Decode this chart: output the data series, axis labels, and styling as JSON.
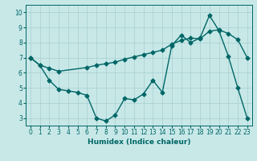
{
  "bg_color": "#c8e8e8",
  "grid_color": "#a8cece",
  "line_color": "#006666",
  "xlabel": "Humidex (Indice chaleur)",
  "xlim_min": -0.5,
  "xlim_max": 23.5,
  "ylim_min": 2.5,
  "ylim_max": 10.5,
  "xticks": [
    0,
    1,
    2,
    3,
    4,
    5,
    6,
    7,
    8,
    9,
    10,
    11,
    12,
    13,
    14,
    15,
    16,
    17,
    18,
    19,
    20,
    21,
    22,
    23
  ],
  "yticks": [
    3,
    4,
    5,
    6,
    7,
    8,
    9,
    10
  ],
  "curve1_x": [
    0,
    1,
    2,
    3,
    4,
    5,
    6,
    7,
    8,
    9,
    10,
    11,
    12,
    13,
    14,
    15,
    16,
    17,
    18,
    19,
    20,
    21,
    22,
    23
  ],
  "curve1_y": [
    7.0,
    6.5,
    5.5,
    4.9,
    4.8,
    4.7,
    4.5,
    3.0,
    2.8,
    3.2,
    4.3,
    4.2,
    4.6,
    5.5,
    4.7,
    7.8,
    8.5,
    8.0,
    8.3,
    9.8,
    8.8,
    7.1,
    5.0,
    3.0
  ],
  "curve2_x": [
    0,
    1,
    2,
    3,
    6,
    7,
    8,
    9,
    10,
    11,
    12,
    13,
    14,
    15,
    16,
    17,
    18,
    19,
    20,
    21,
    22,
    23
  ],
  "curve2_y": [
    7.0,
    6.5,
    6.3,
    6.1,
    6.35,
    6.5,
    6.6,
    6.7,
    6.9,
    7.05,
    7.2,
    7.35,
    7.5,
    7.9,
    8.15,
    8.3,
    8.25,
    8.75,
    8.85,
    8.6,
    8.2,
    7.0
  ],
  "marker_size": 2.5,
  "line_width": 1.0,
  "xlabel_fontsize": 6.5,
  "tick_fontsize": 5.5
}
